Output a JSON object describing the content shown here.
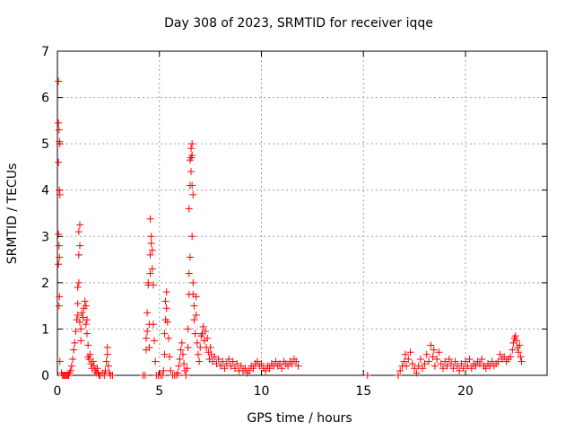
{
  "chart_data": {
    "type": "scatter",
    "title": "Day 308 of 2023, SRMTID for receiver iqqe",
    "xlabel": "GPS time / hours",
    "ylabel": "SRMTID / TECUs",
    "xlim": [
      0,
      24
    ],
    "ylim": [
      0,
      7
    ],
    "xticks": [
      0,
      5,
      10,
      15,
      20
    ],
    "yticks": [
      0,
      1,
      2,
      3,
      4,
      5,
      6,
      7
    ],
    "grid": true,
    "marker": "+",
    "colors": {
      "series": "#ff0000",
      "grid": "#a0a0a0",
      "axis": "#000000"
    },
    "series": [
      {
        "name": "SRMTID",
        "points": [
          [
            0.05,
            6.35
          ],
          [
            0.05,
            5.45
          ],
          [
            0.08,
            5.3
          ],
          [
            0.1,
            5.05
          ],
          [
            0.12,
            5.0
          ],
          [
            0.05,
            4.6
          ],
          [
            0.1,
            4.0
          ],
          [
            0.12,
            3.9
          ],
          [
            0.05,
            3.05
          ],
          [
            0.08,
            2.8
          ],
          [
            0.1,
            2.55
          ],
          [
            0.05,
            2.4
          ],
          [
            0.1,
            1.7
          ],
          [
            0.08,
            1.5
          ],
          [
            0.12,
            0.3
          ],
          [
            0.2,
            0.05
          ],
          [
            0.25,
            0.0
          ],
          [
            0.3,
            0.0
          ],
          [
            0.35,
            0.0
          ],
          [
            0.4,
            0.0
          ],
          [
            0.45,
            0.0
          ],
          [
            0.5,
            0.0
          ],
          [
            0.55,
            0.0
          ],
          [
            0.6,
            0.05
          ],
          [
            0.65,
            0.1
          ],
          [
            0.7,
            0.2
          ],
          [
            0.75,
            0.35
          ],
          [
            0.8,
            0.55
          ],
          [
            0.85,
            0.7
          ],
          [
            0.9,
            0.95
          ],
          [
            0.95,
            1.2
          ],
          [
            1.0,
            1.3
          ],
          [
            1.0,
            1.55
          ],
          [
            1.0,
            1.9
          ],
          [
            1.05,
            2.0
          ],
          [
            1.05,
            2.6
          ],
          [
            1.1,
            2.8
          ],
          [
            1.05,
            3.1
          ],
          [
            1.1,
            3.25
          ],
          [
            1.1,
            1.15
          ],
          [
            1.15,
            1.0
          ],
          [
            1.15,
            0.75
          ],
          [
            1.2,
            1.35
          ],
          [
            1.25,
            1.25
          ],
          [
            1.3,
            1.45
          ],
          [
            1.35,
            1.6
          ],
          [
            1.4,
            1.5
          ],
          [
            1.4,
            1.1
          ],
          [
            1.45,
            1.2
          ],
          [
            1.45,
            0.9
          ],
          [
            1.5,
            0.65
          ],
          [
            1.5,
            0.4
          ],
          [
            1.55,
            0.35
          ],
          [
            1.6,
            0.45
          ],
          [
            1.65,
            0.25
          ],
          [
            1.7,
            0.15
          ],
          [
            1.75,
            0.3
          ],
          [
            1.8,
            0.2
          ],
          [
            1.85,
            0.1
          ],
          [
            1.9,
            0.05
          ],
          [
            1.95,
            0.15
          ],
          [
            2.0,
            0.05
          ],
          [
            2.05,
            0.0
          ],
          [
            2.1,
            0.0
          ],
          [
            2.2,
            0.05
          ],
          [
            2.3,
            0.0
          ],
          [
            2.35,
            0.1
          ],
          [
            2.4,
            0.3
          ],
          [
            2.45,
            0.45
          ],
          [
            2.45,
            0.6
          ],
          [
            2.5,
            0.2
          ],
          [
            2.55,
            0.05
          ],
          [
            2.6,
            0.0
          ],
          [
            2.7,
            0.0
          ],
          [
            4.2,
            0.0
          ],
          [
            4.3,
            0.0
          ],
          [
            4.35,
            0.55
          ],
          [
            4.35,
            0.8
          ],
          [
            4.4,
            0.95
          ],
          [
            4.4,
            1.35
          ],
          [
            4.45,
            1.95
          ],
          [
            4.45,
            2.0
          ],
          [
            4.5,
            1.1
          ],
          [
            4.5,
            0.6
          ],
          [
            4.55,
            2.2
          ],
          [
            4.55,
            2.6
          ],
          [
            4.6,
            2.85
          ],
          [
            4.6,
            3.0
          ],
          [
            4.55,
            3.38
          ],
          [
            4.65,
            2.7
          ],
          [
            4.65,
            2.3
          ],
          [
            4.7,
            1.95
          ],
          [
            4.7,
            1.1
          ],
          [
            4.75,
            0.75
          ],
          [
            4.8,
            0.3
          ],
          [
            4.85,
            0.0
          ],
          [
            4.95,
            0.0
          ],
          [
            5.05,
            0.0
          ],
          [
            5.15,
            0.0
          ],
          [
            5.2,
            0.1
          ],
          [
            5.25,
            0.45
          ],
          [
            5.25,
            0.9
          ],
          [
            5.3,
            1.2
          ],
          [
            5.3,
            1.6
          ],
          [
            5.35,
            1.8
          ],
          [
            5.35,
            1.45
          ],
          [
            5.4,
            1.15
          ],
          [
            5.45,
            0.8
          ],
          [
            5.5,
            0.4
          ],
          [
            5.55,
            0.1
          ],
          [
            5.65,
            0.0
          ],
          [
            5.75,
            0.0
          ],
          [
            5.85,
            0.0
          ],
          [
            5.9,
            0.05
          ],
          [
            5.95,
            0.2
          ],
          [
            6.0,
            0.35
          ],
          [
            6.05,
            0.55
          ],
          [
            6.1,
            0.7
          ],
          [
            6.15,
            0.45
          ],
          [
            6.2,
            0.25
          ],
          [
            6.25,
            0.1
          ],
          [
            6.3,
            0.0
          ],
          [
            6.35,
            0.15
          ],
          [
            6.4,
            0.6
          ],
          [
            6.4,
            1.0
          ],
          [
            6.45,
            1.75
          ],
          [
            6.45,
            2.2
          ],
          [
            6.5,
            2.55
          ],
          [
            6.45,
            3.6
          ],
          [
            6.5,
            4.1
          ],
          [
            6.5,
            4.65
          ],
          [
            6.55,
            4.7
          ],
          [
            6.55,
            4.9
          ],
          [
            6.6,
            5.0
          ],
          [
            6.6,
            4.75
          ],
          [
            6.55,
            4.4
          ],
          [
            6.6,
            4.1
          ],
          [
            6.65,
            3.9
          ],
          [
            6.6,
            3.0
          ],
          [
            6.65,
            2.0
          ],
          [
            6.65,
            1.75
          ],
          [
            6.7,
            1.5
          ],
          [
            6.7,
            1.2
          ],
          [
            6.75,
            0.9
          ],
          [
            6.8,
            1.7
          ],
          [
            6.8,
            1.3
          ],
          [
            6.85,
            0.7
          ],
          [
            6.9,
            0.45
          ],
          [
            6.95,
            0.3
          ],
          [
            7.0,
            0.6
          ],
          [
            7.05,
            0.85
          ],
          [
            7.1,
            0.9
          ],
          [
            7.15,
            1.05
          ],
          [
            7.2,
            0.75
          ],
          [
            7.25,
            0.95
          ],
          [
            7.3,
            0.6
          ],
          [
            7.35,
            0.8
          ],
          [
            7.4,
            0.5
          ],
          [
            7.45,
            0.35
          ],
          [
            7.5,
            0.6
          ],
          [
            7.55,
            0.45
          ],
          [
            7.6,
            0.3
          ],
          [
            7.7,
            0.4
          ],
          [
            7.8,
            0.25
          ],
          [
            7.9,
            0.35
          ],
          [
            8.0,
            0.2
          ],
          [
            8.1,
            0.3
          ],
          [
            8.2,
            0.15
          ],
          [
            8.3,
            0.25
          ],
          [
            8.4,
            0.35
          ],
          [
            8.5,
            0.2
          ],
          [
            8.6,
            0.3
          ],
          [
            8.7,
            0.15
          ],
          [
            8.8,
            0.25
          ],
          [
            8.9,
            0.1
          ],
          [
            9.0,
            0.2
          ],
          [
            9.1,
            0.1
          ],
          [
            9.2,
            0.15
          ],
          [
            9.3,
            0.05
          ],
          [
            9.4,
            0.1
          ],
          [
            9.5,
            0.2
          ],
          [
            9.6,
            0.15
          ],
          [
            9.7,
            0.25
          ],
          [
            9.8,
            0.3
          ],
          [
            9.9,
            0.2
          ],
          [
            10.0,
            0.25
          ],
          [
            10.1,
            0.15
          ],
          [
            10.2,
            0.1
          ],
          [
            10.3,
            0.2
          ],
          [
            10.4,
            0.15
          ],
          [
            10.5,
            0.25
          ],
          [
            10.6,
            0.2
          ],
          [
            10.7,
            0.3
          ],
          [
            10.8,
            0.2
          ],
          [
            10.9,
            0.25
          ],
          [
            11.0,
            0.15
          ],
          [
            11.1,
            0.3
          ],
          [
            11.2,
            0.25
          ],
          [
            11.3,
            0.2
          ],
          [
            11.4,
            0.3
          ],
          [
            11.5,
            0.25
          ],
          [
            11.6,
            0.35
          ],
          [
            11.7,
            0.3
          ],
          [
            11.8,
            0.2
          ],
          [
            15.2,
            0.0
          ],
          [
            16.7,
            0.0
          ],
          [
            16.8,
            0.1
          ],
          [
            16.9,
            0.2
          ],
          [
            17.0,
            0.3
          ],
          [
            17.05,
            0.45
          ],
          [
            17.1,
            0.2
          ],
          [
            17.2,
            0.35
          ],
          [
            17.3,
            0.5
          ],
          [
            17.4,
            0.25
          ],
          [
            17.5,
            0.15
          ],
          [
            17.6,
            0.05
          ],
          [
            17.7,
            0.2
          ],
          [
            17.8,
            0.35
          ],
          [
            17.9,
            0.15
          ],
          [
            18.0,
            0.25
          ],
          [
            18.1,
            0.45
          ],
          [
            18.2,
            0.3
          ],
          [
            18.3,
            0.65
          ],
          [
            18.4,
            0.4
          ],
          [
            18.45,
            0.55
          ],
          [
            18.5,
            0.2
          ],
          [
            18.6,
            0.35
          ],
          [
            18.7,
            0.5
          ],
          [
            18.8,
            0.25
          ],
          [
            18.9,
            0.15
          ],
          [
            19.0,
            0.3
          ],
          [
            19.1,
            0.2
          ],
          [
            19.2,
            0.35
          ],
          [
            19.3,
            0.25
          ],
          [
            19.4,
            0.15
          ],
          [
            19.5,
            0.3
          ],
          [
            19.6,
            0.2
          ],
          [
            19.7,
            0.1
          ],
          [
            19.8,
            0.25
          ],
          [
            19.9,
            0.15
          ],
          [
            20.0,
            0.3
          ],
          [
            20.1,
            0.2
          ],
          [
            20.2,
            0.35
          ],
          [
            20.3,
            0.15
          ],
          [
            20.4,
            0.25
          ],
          [
            20.5,
            0.2
          ],
          [
            20.6,
            0.3
          ],
          [
            20.7,
            0.25
          ],
          [
            20.8,
            0.35
          ],
          [
            20.9,
            0.2
          ],
          [
            21.0,
            0.15
          ],
          [
            21.1,
            0.25
          ],
          [
            21.2,
            0.2
          ],
          [
            21.3,
            0.3
          ],
          [
            21.4,
            0.2
          ],
          [
            21.5,
            0.25
          ],
          [
            21.6,
            0.3
          ],
          [
            21.7,
            0.45
          ],
          [
            21.8,
            0.35
          ],
          [
            21.9,
            0.4
          ],
          [
            22.0,
            0.3
          ],
          [
            22.1,
            0.35
          ],
          [
            22.2,
            0.4
          ],
          [
            22.3,
            0.55
          ],
          [
            22.35,
            0.7
          ],
          [
            22.4,
            0.8
          ],
          [
            22.45,
            0.85
          ],
          [
            22.5,
            0.75
          ],
          [
            22.55,
            0.6
          ],
          [
            22.6,
            0.5
          ],
          [
            22.65,
            0.65
          ],
          [
            22.7,
            0.4
          ],
          [
            22.75,
            0.3
          ]
        ]
      }
    ]
  }
}
